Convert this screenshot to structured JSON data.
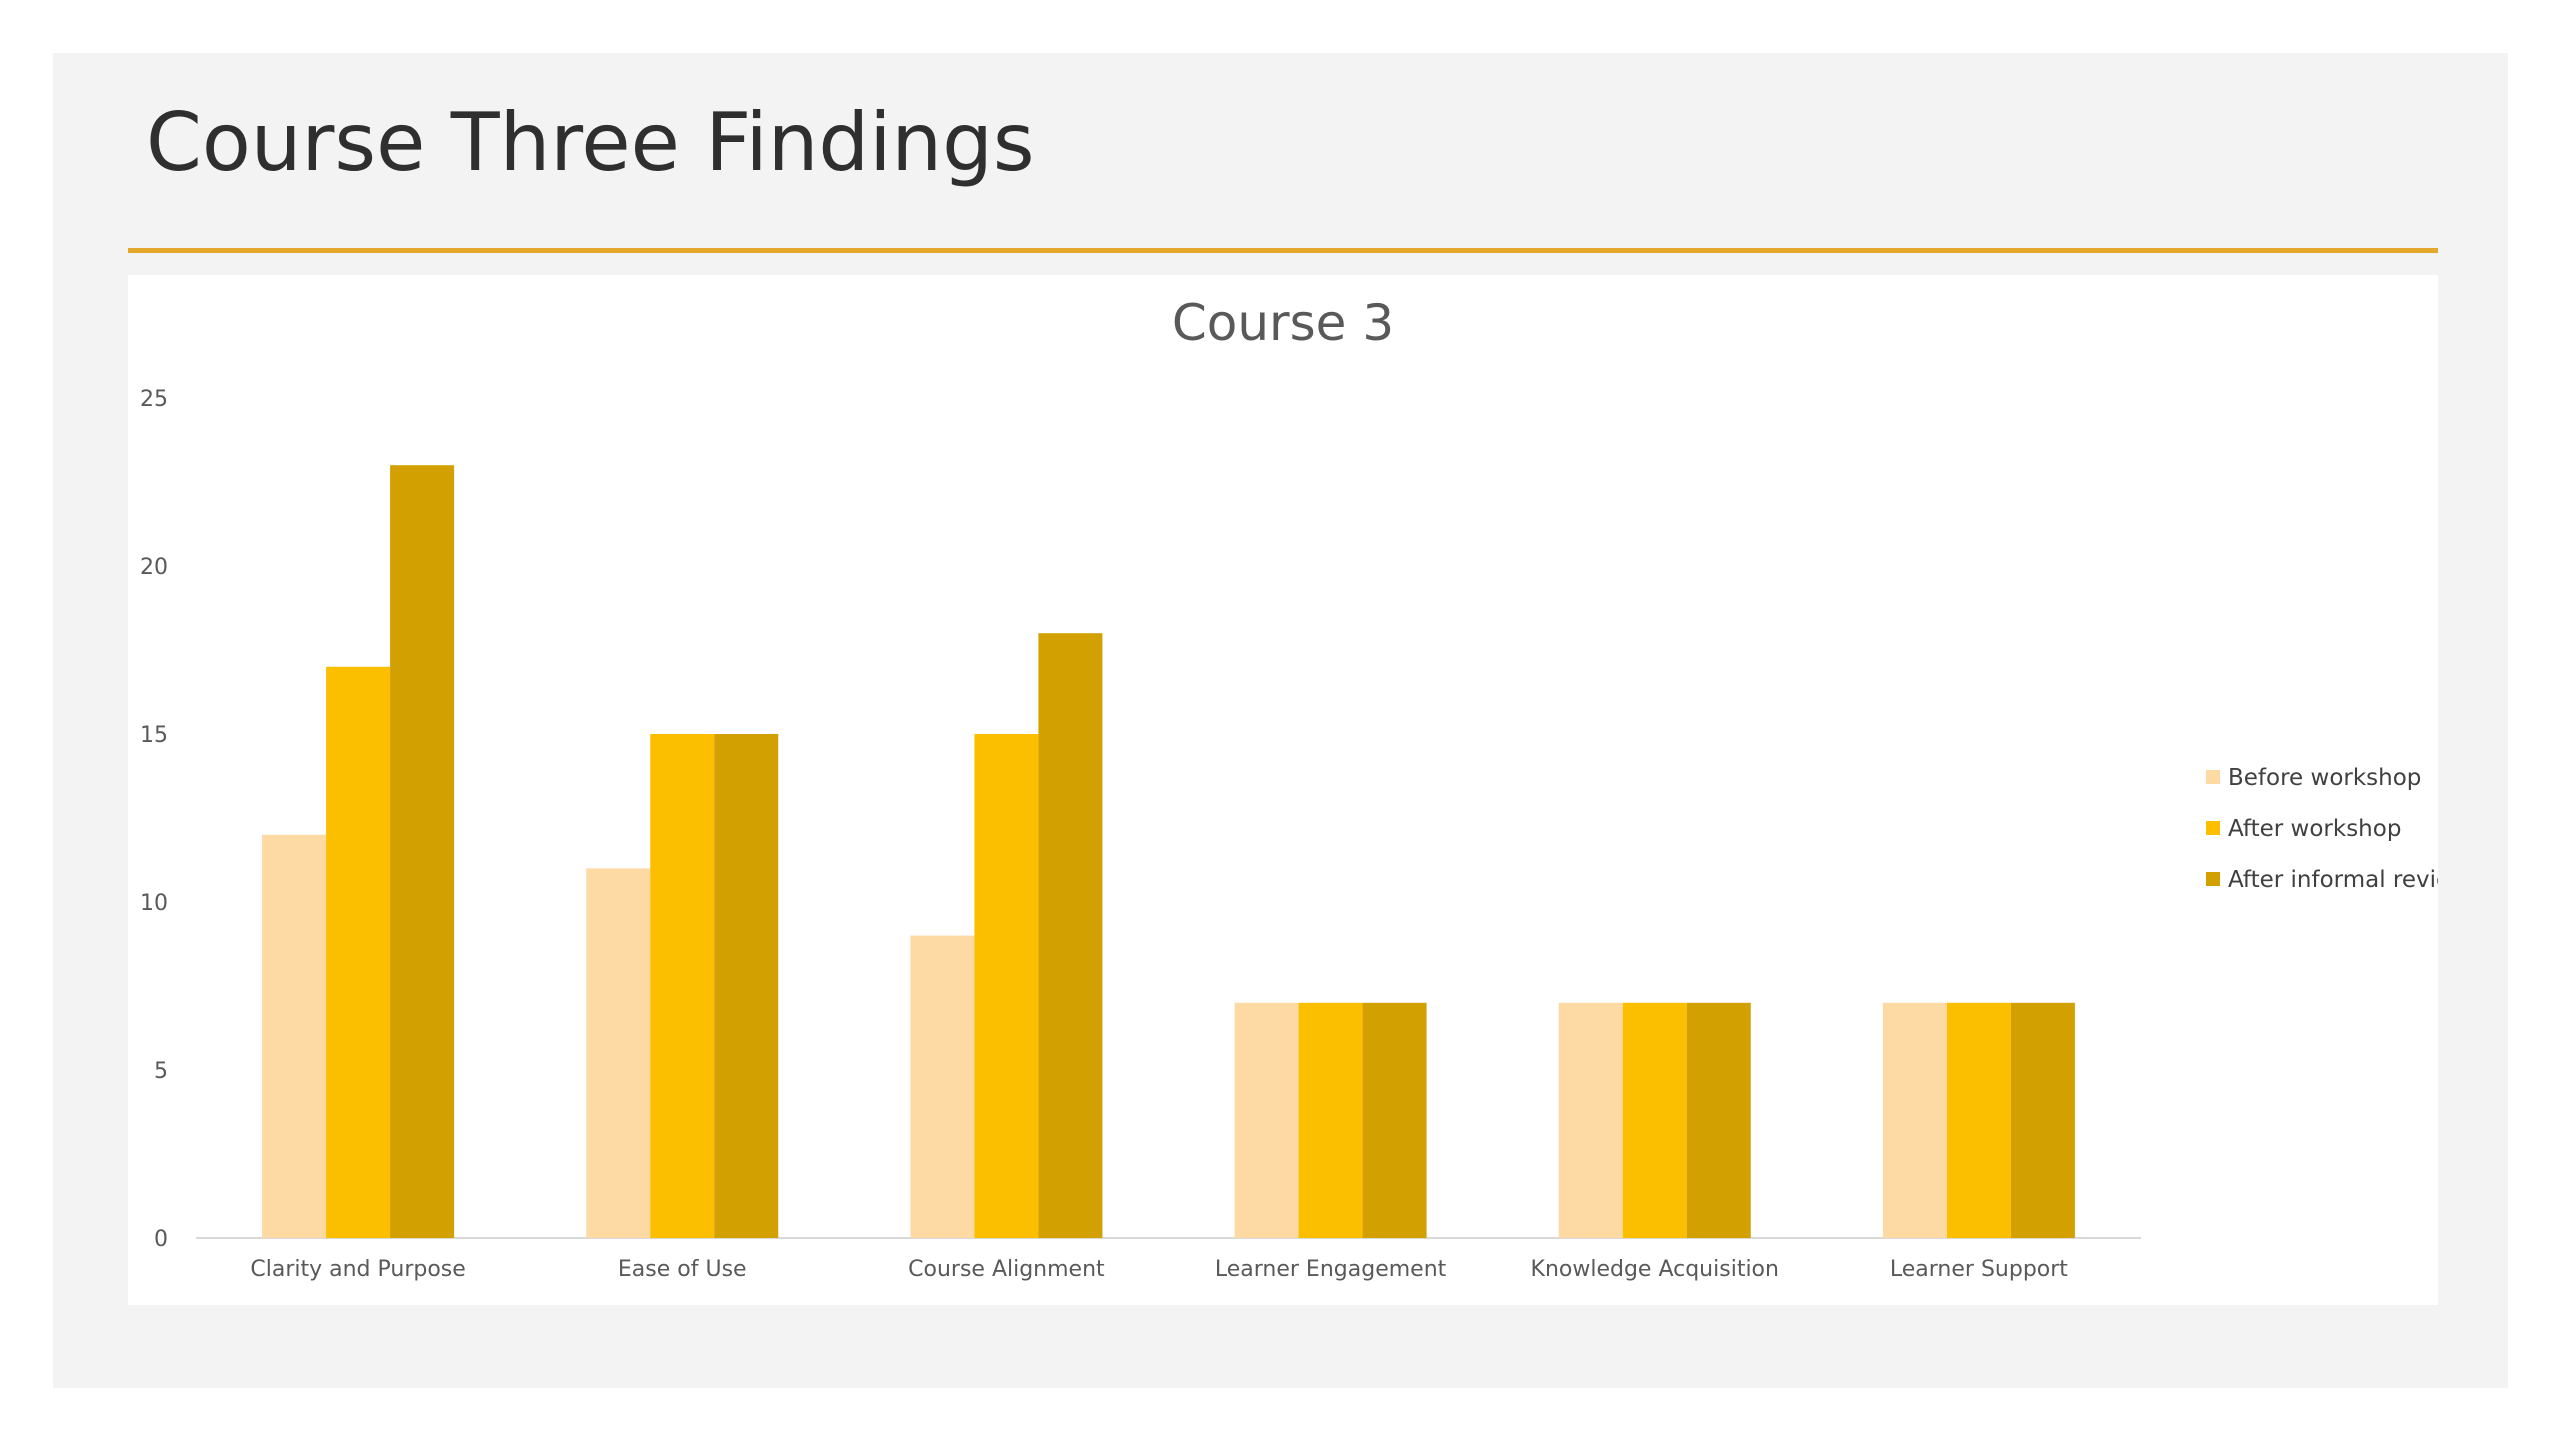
{
  "slide": {
    "title": "Course Three Findings"
  },
  "colors": {
    "background": "#f3f3f3",
    "rule": "#e3a82b",
    "series": [
      "#fdd9a3",
      "#fbbf00",
      "#d2a000"
    ]
  },
  "chart_data": {
    "type": "bar",
    "title": "Course 3",
    "xlabel": "",
    "ylabel": "",
    "ylim": [
      0,
      25
    ],
    "yticks": [
      0,
      5,
      10,
      15,
      20,
      25
    ],
    "grid": false,
    "legend_position": "right",
    "categories": [
      "Clarity and Purpose",
      "Ease of Use",
      "Course Alignment",
      "Learner Engagement",
      "Knowledge Acquisition",
      "Learner Support"
    ],
    "series": [
      {
        "name": "Before workshop",
        "color": "#fdd9a3",
        "values": [
          12,
          11,
          9,
          7,
          7,
          7
        ]
      },
      {
        "name": "After workshop",
        "color": "#fbbf00",
        "values": [
          17,
          15,
          15,
          7,
          7,
          7
        ]
      },
      {
        "name": "After informal review",
        "color": "#d2a000",
        "values": [
          23,
          15,
          18,
          7,
          7,
          7
        ]
      }
    ]
  }
}
